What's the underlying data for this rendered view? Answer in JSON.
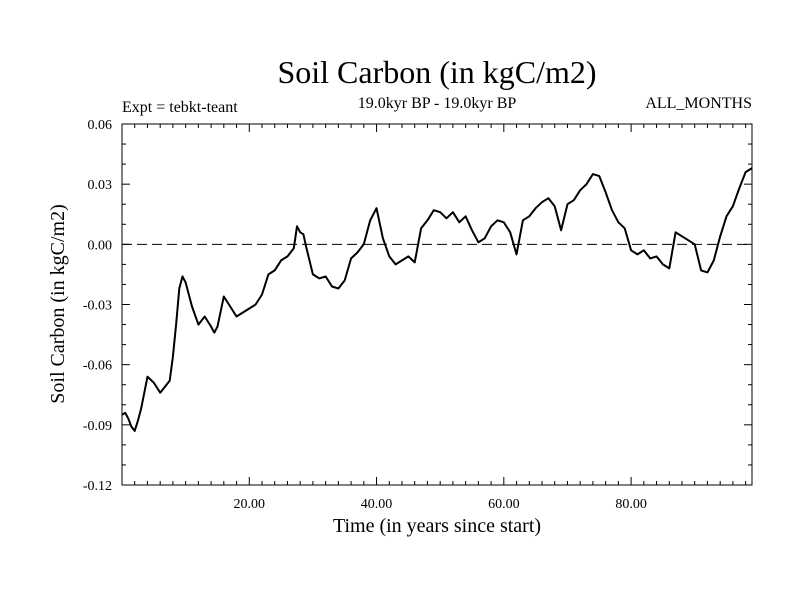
{
  "chart_data": {
    "type": "line",
    "title": "Soil Carbon (in kgC/m2)",
    "subtitle": "19.0kyr BP - 19.0kyr BP",
    "left_label": "Expt = tebkt-teant",
    "right_label": "ALL_MONTHS",
    "xlabel": "Time (in years since start)",
    "ylabel": "Soil Carbon (in kgC/m2)",
    "xlim": [
      0,
      99
    ],
    "ylim": [
      -0.12,
      0.06
    ],
    "x_ticks": [
      20,
      40,
      60,
      80
    ],
    "x_tick_labels": [
      "20.00",
      "40.00",
      "60.00",
      "80.00"
    ],
    "y_ticks": [
      -0.12,
      -0.09,
      -0.06,
      -0.03,
      0.0,
      0.03,
      0.06
    ],
    "y_tick_labels": [
      "-0.12",
      "-0.09",
      "-0.06",
      "-0.03",
      "0.00",
      "0.03",
      "0.06"
    ],
    "reference_line": {
      "y": 0.0,
      "style": "dashed"
    },
    "series": [
      {
        "name": "Soil Carbon",
        "x": [
          0,
          0.5,
          1,
          1.5,
          2,
          2.5,
          3,
          4,
          5,
          6,
          7,
          7.5,
          8,
          8.5,
          9,
          9.5,
          10,
          11,
          12,
          13,
          14,
          14.5,
          15,
          16,
          17,
          18,
          19,
          20,
          21,
          22,
          23,
          24,
          25,
          26,
          27,
          27.5,
          28,
          28.5,
          29,
          30,
          31,
          32,
          33,
          34,
          35,
          36,
          37,
          38,
          39,
          40,
          41,
          42,
          43,
          44,
          45,
          46,
          47,
          48,
          49,
          50,
          51,
          52,
          53,
          54,
          55,
          56,
          57,
          58,
          59,
          60,
          61,
          62,
          63,
          64,
          65,
          66,
          67,
          68,
          69,
          70,
          71,
          72,
          73,
          74,
          75,
          76,
          77,
          78,
          79,
          80,
          81,
          82,
          83,
          84,
          85,
          86,
          87,
          88,
          89,
          90,
          91,
          92,
          93,
          94,
          95,
          96,
          97,
          98,
          99
        ],
        "values": [
          -0.085,
          -0.084,
          -0.087,
          -0.091,
          -0.093,
          -0.088,
          -0.082,
          -0.066,
          -0.069,
          -0.074,
          -0.07,
          -0.068,
          -0.056,
          -0.04,
          -0.022,
          -0.016,
          -0.019,
          -0.031,
          -0.04,
          -0.036,
          -0.041,
          -0.044,
          -0.041,
          -0.026,
          -0.031,
          -0.036,
          -0.034,
          -0.032,
          -0.03,
          -0.025,
          -0.015,
          -0.013,
          -0.008,
          -0.006,
          -0.002,
          0.009,
          0.006,
          0.005,
          -0.002,
          -0.015,
          -0.017,
          -0.016,
          -0.021,
          -0.022,
          -0.018,
          -0.007,
          -0.004,
          0.0,
          0.012,
          0.018,
          0.003,
          -0.006,
          -0.01,
          -0.008,
          -0.006,
          -0.009,
          0.008,
          0.012,
          0.017,
          0.016,
          0.013,
          0.016,
          0.011,
          0.014,
          0.007,
          0.001,
          0.003,
          0.009,
          0.012,
          0.011,
          0.006,
          -0.005,
          0.012,
          0.014,
          0.018,
          0.021,
          0.023,
          0.019,
          0.007,
          0.02,
          0.022,
          0.027,
          0.03,
          0.035,
          0.034,
          0.026,
          0.017,
          0.011,
          0.008,
          -0.003,
          -0.005,
          -0.003,
          -0.007,
          -0.006,
          -0.01,
          -0.012,
          0.006,
          0.004,
          0.002,
          0.0,
          -0.013,
          -0.014,
          -0.008,
          0.004,
          0.014,
          0.019,
          0.028,
          0.036,
          0.038
        ]
      }
    ]
  }
}
